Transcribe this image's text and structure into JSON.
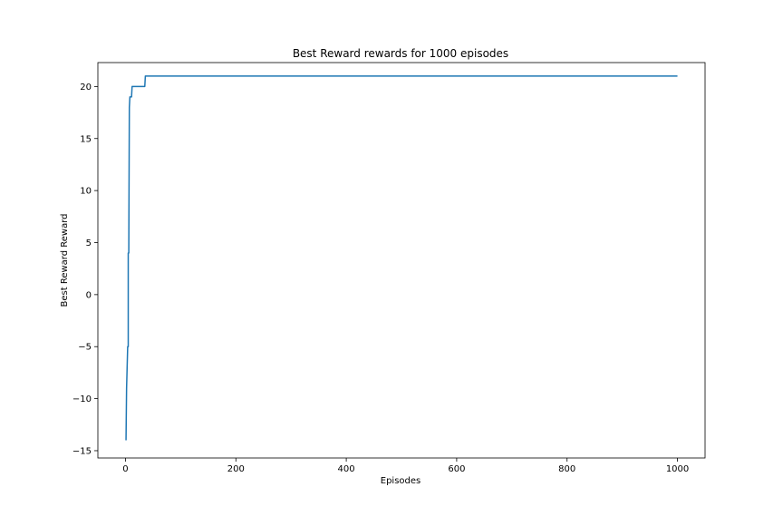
{
  "chart_data": {
    "type": "line",
    "title": "Best Reward rewards for 1000 episodes",
    "xlabel": "Episodes",
    "ylabel": "Best Reward Reward",
    "xlim": [
      -50,
      1050
    ],
    "ylim": [
      -15.7,
      22.3
    ],
    "xticks": [
      0,
      200,
      400,
      600,
      800,
      1000
    ],
    "yticks": [
      -15,
      -10,
      -5,
      0,
      5,
      10,
      15,
      20
    ],
    "grid": false,
    "series": [
      {
        "color": "#1f77b4",
        "x": [
          1,
          2,
          3,
          4,
          4,
          5,
          5,
          6,
          7,
          8,
          9,
          10,
          11,
          11,
          12,
          13,
          13,
          35,
          36,
          36,
          1000
        ],
        "y": [
          -14,
          -9,
          -7,
          -5,
          -5,
          -5,
          4,
          4,
          18,
          19,
          19,
          19,
          19,
          19,
          20,
          20,
          20,
          20,
          21,
          21,
          21
        ]
      }
    ]
  }
}
